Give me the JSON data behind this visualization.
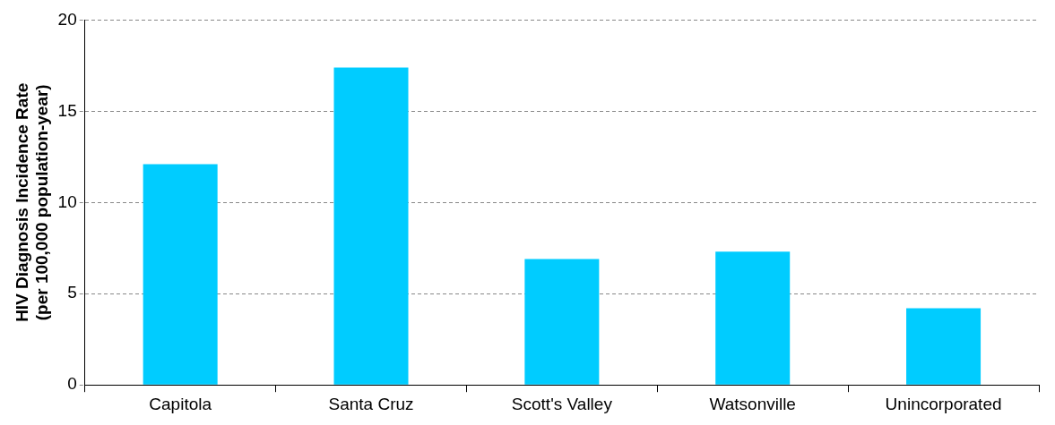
{
  "chart_data": {
    "type": "bar",
    "ylabel": "HIV Diagnosis Incidence Rate\n(per 100,000 population-year)",
    "categories": [
      "Capitola",
      "Santa Cruz",
      "Scott's Valley",
      "Watsonville",
      "Unincorporated"
    ],
    "series": [
      {
        "color": "#00ccff",
        "values": [
          12.1,
          17.4,
          6.9,
          7.3,
          4.2
        ]
      }
    ],
    "ylim": [
      0,
      20
    ],
    "yticks": [
      0,
      5,
      10,
      15,
      20
    ],
    "grid": "y",
    "legend": false
  }
}
